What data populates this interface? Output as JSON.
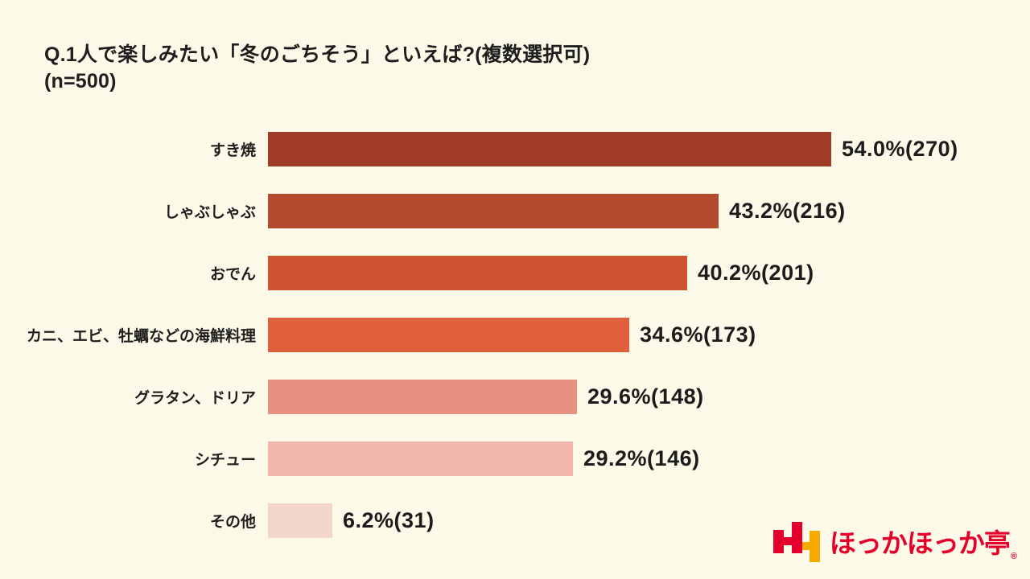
{
  "page": {
    "background_color": "#FCF9E9"
  },
  "header": {
    "title_line1": "Q.1人で楽しみたい「冬のごちそう」といえば?(複数選択可)",
    "title_line2": "(n=500)"
  },
  "chart_data": {
    "type": "bar",
    "orientation": "horizontal",
    "title": "Q.1人で楽しみたい「冬のごちそう」といえば?(複数選択可)",
    "sample_size_label": "(n=500)",
    "n": 500,
    "unit": "%",
    "xlim": [
      0,
      54
    ],
    "grid": false,
    "legend": false,
    "categories": [
      "すき焼",
      "しゃぶしゃぶ",
      "おでん",
      "カニ、エビ、牡蠣などの海鮮料理",
      "グラタン、ドリア",
      "シチュー",
      "その他"
    ],
    "values": [
      54.0,
      43.2,
      40.2,
      34.6,
      29.6,
      29.2,
      6.2
    ],
    "counts": [
      270,
      216,
      201,
      173,
      148,
      146,
      31
    ],
    "value_labels": [
      "54.0%(270)",
      "43.2%(216)",
      "40.2%(201)",
      "34.6%(173)",
      "29.6%(148)",
      "29.2%(146)",
      "6.2%(31)"
    ],
    "colors": [
      "#A03C25",
      "#B54A2C",
      "#CD5330",
      "#E0603B",
      "#E89181",
      "#F0B5AC",
      "#F4D5CE"
    ]
  },
  "logo": {
    "brand": "ほっかほっか亭",
    "registered_mark": "®",
    "mark_icon": "hokka-hh-icon",
    "red": "#E4002B",
    "yellow": "#F6AA00",
    "text_color": "#E4002B"
  }
}
